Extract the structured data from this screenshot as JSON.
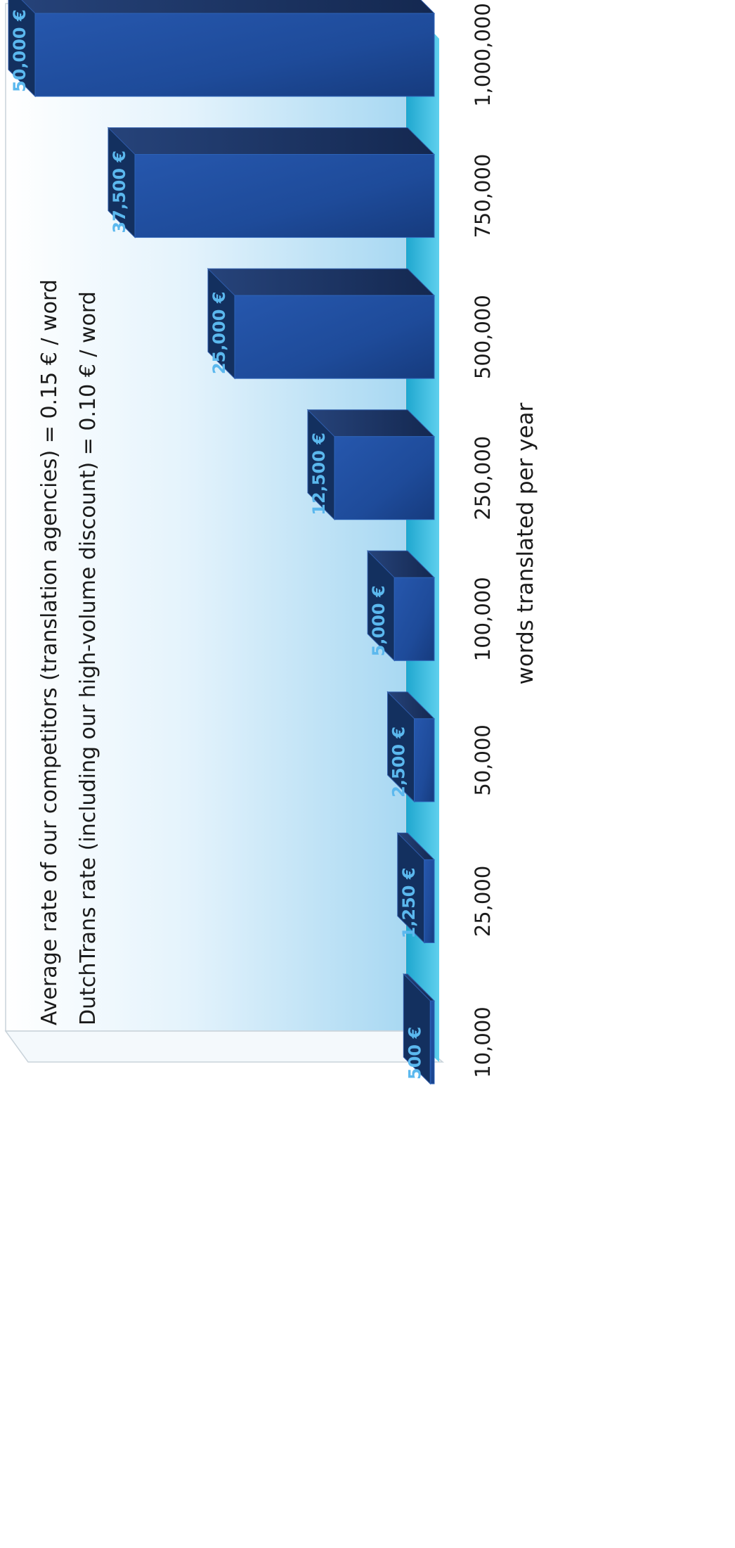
{
  "chart_data": {
    "type": "bar",
    "orientation": "rotated",
    "categories": [
      "10,000",
      "25,000",
      "50,000",
      "100,000",
      "250,000",
      "500,000",
      "750,000",
      "1,000,000"
    ],
    "x": [
      10000,
      25000,
      50000,
      100000,
      250000,
      500000,
      750000,
      1000000
    ],
    "values": [
      500,
      1250,
      2500,
      5000,
      12500,
      25000,
      37500,
      50000
    ],
    "data_labels": [
      "500 €",
      "1,250 €",
      "2,500 €",
      "5,000 €",
      "12,500 €",
      "25,000 €",
      "37,500 €",
      "50,000 €"
    ],
    "xlabel": "words translated per year",
    "ylabel": "",
    "ylim": [
      0,
      50000
    ],
    "grid": false,
    "annotations": [
      "Average rate of our competitors (translation agencies) = 0.15 € / word",
      "DutchTrans rate (including our high-volume discount) = 0.10 € / word"
    ],
    "colors": {
      "bar_front": "#1d4d9e",
      "bar_top": "#1a2f5c",
      "bar_side": "#13305f",
      "label": "#5bb8ee",
      "floor": "#2fb6da",
      "backdrop": "#b3dcf4"
    }
  }
}
